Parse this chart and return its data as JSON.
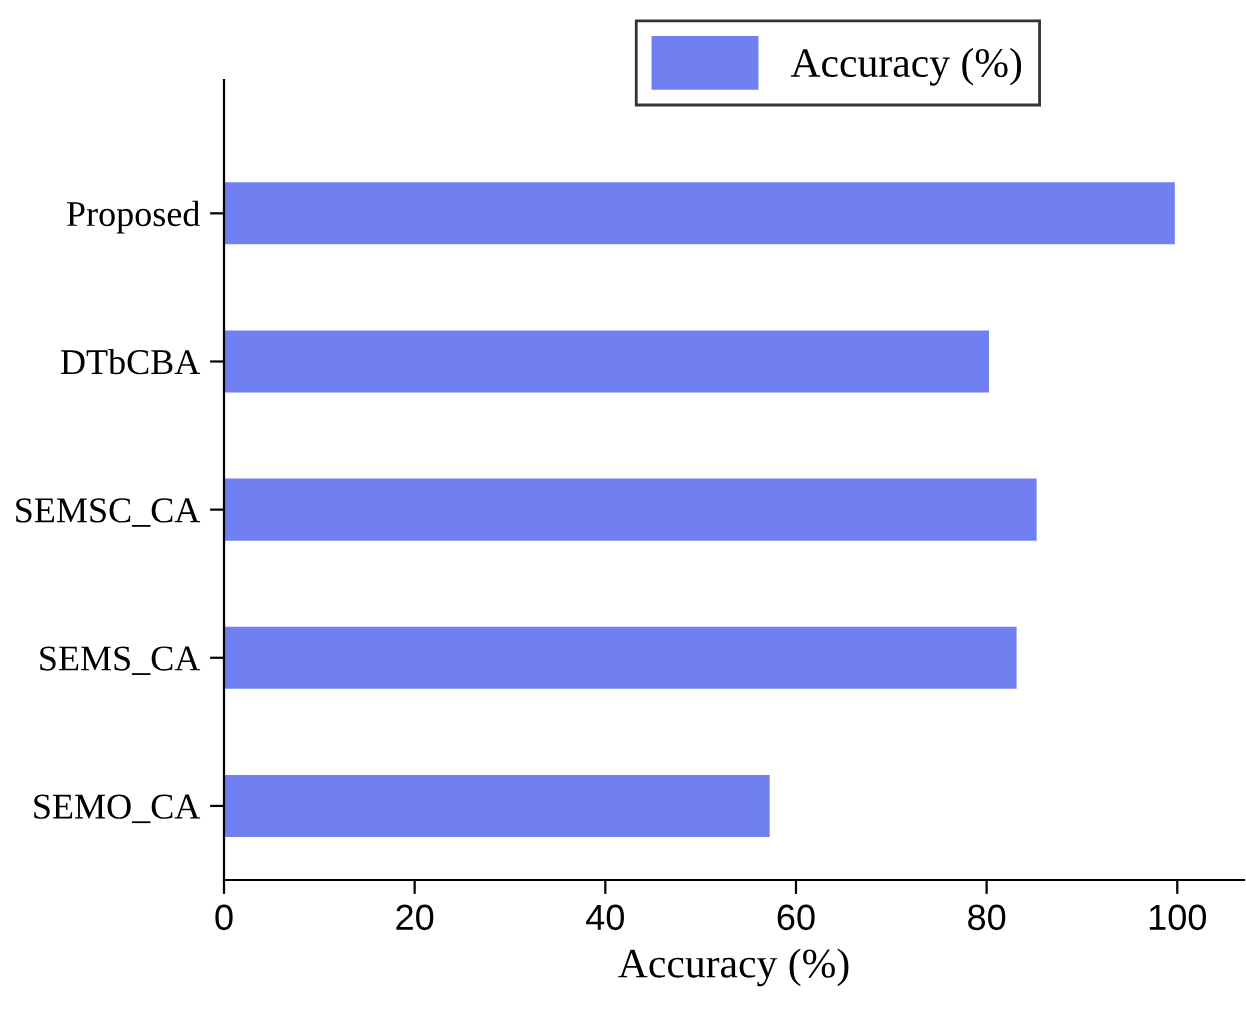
{
  "chart_data": {
    "type": "bar",
    "orientation": "horizontal",
    "categories": [
      "Proposed",
      "DTbCBA",
      "SEMSC_CA",
      "SEMS_CA",
      "SEMO_CA"
    ],
    "series": [
      {
        "name": "Accuracy (%)",
        "color": "#7080f0",
        "values": [
          99.6,
          80.1,
          85.1,
          83.0,
          57.1
        ]
      }
    ],
    "xlabel": "Accuracy (%)",
    "xlim": [
      0,
      107
    ],
    "xticks": [
      0,
      20,
      40,
      60,
      80,
      100
    ],
    "legend": "top right",
    "grid": false
  }
}
